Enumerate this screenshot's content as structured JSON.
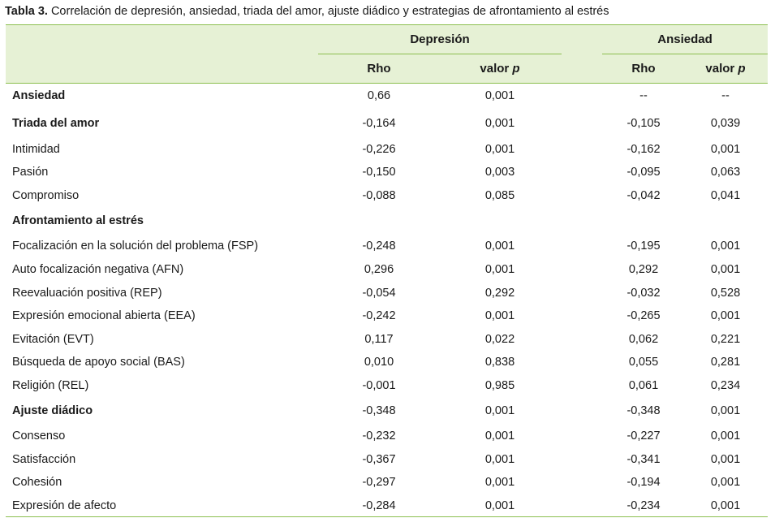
{
  "caption": {
    "label": "Tabla 3.",
    "text": " Correlación de depresión, ansiedad, triada del amor, ajuste diádico y estrategias de afrontamiento al estrés"
  },
  "header": {
    "groups": [
      "Depresión",
      "Ansiedad"
    ],
    "sub_rho": "Rho",
    "sub_p_prefix": "valor ",
    "sub_p_var": "p"
  },
  "rows": [
    {
      "label": "Ansiedad",
      "bold": true,
      "dep_rho": "0,66",
      "dep_p": "0,001",
      "anx_rho": "--",
      "anx_p": "--"
    },
    {
      "label": "Triada del amor",
      "bold": true,
      "dep_rho": "-0,164",
      "dep_p": "0,001",
      "anx_rho": "-0,105",
      "anx_p": "0,039"
    },
    {
      "label": "Intimidad",
      "bold": false,
      "dep_rho": "-0,226",
      "dep_p": "0,001",
      "anx_rho": "-0,162",
      "anx_p": "0,001"
    },
    {
      "label": "Pasión",
      "bold": false,
      "dep_rho": "-0,150",
      "dep_p": "0,003",
      "anx_rho": "-0,095",
      "anx_p": "0,063"
    },
    {
      "label": "Compromiso",
      "bold": false,
      "dep_rho": "-0,088",
      "dep_p": "0,085",
      "anx_rho": "-0,042",
      "anx_p": "0,041"
    },
    {
      "label": "Afrontamiento al estrés",
      "bold": true,
      "dep_rho": "",
      "dep_p": "",
      "anx_rho": "",
      "anx_p": ""
    },
    {
      "label": "Focalización en la solución del problema (FSP)",
      "bold": false,
      "dep_rho": "-0,248",
      "dep_p": "0,001",
      "anx_rho": "-0,195",
      "anx_p": "0,001"
    },
    {
      "label": "Auto focalización negativa (AFN)",
      "bold": false,
      "dep_rho": "0,296",
      "dep_p": "0,001",
      "anx_rho": "0,292",
      "anx_p": "0,001"
    },
    {
      "label": "Reevaluación positiva (REP)",
      "bold": false,
      "dep_rho": "-0,054",
      "dep_p": "0,292",
      "anx_rho": "-0,032",
      "anx_p": "0,528"
    },
    {
      "label": "Expresión emocional abierta (EEA)",
      "bold": false,
      "dep_rho": "-0,242",
      "dep_p": "0,001",
      "anx_rho": "-0,265",
      "anx_p": "0,001"
    },
    {
      "label": "Evitación (EVT)",
      "bold": false,
      "dep_rho": "0,117",
      "dep_p": "0,022",
      "anx_rho": "0,062",
      "anx_p": "0,221"
    },
    {
      "label": "Búsqueda de apoyo social (BAS)",
      "bold": false,
      "dep_rho": "0,010",
      "dep_p": "0,838",
      "anx_rho": "0,055",
      "anx_p": "0,281"
    },
    {
      "label": "Religión (REL)",
      "bold": false,
      "dep_rho": "-0,001",
      "dep_p": "0,985",
      "anx_rho": "0,061",
      "anx_p": "0,234"
    },
    {
      "label": "Ajuste diádico",
      "bold": true,
      "dep_rho": "-0,348",
      "dep_p": "0,001",
      "anx_rho": "-0,348",
      "anx_p": "0,001"
    },
    {
      "label": "Consenso",
      "bold": false,
      "dep_rho": "-0,232",
      "dep_p": "0,001",
      "anx_rho": "-0,227",
      "anx_p": "0,001"
    },
    {
      "label": "Satisfacción",
      "bold": false,
      "dep_rho": "-0,367",
      "dep_p": "0,001",
      "anx_rho": "-0,341",
      "anx_p": "0,001"
    },
    {
      "label": "Cohesión",
      "bold": false,
      "dep_rho": "-0,297",
      "dep_p": "0,001",
      "anx_rho": "-0,194",
      "anx_p": "0,001"
    },
    {
      "label": "Expresión de afecto",
      "bold": false,
      "dep_rho": "-0,284",
      "dep_p": "0,001",
      "anx_rho": "-0,234",
      "anx_p": "0,001"
    }
  ]
}
